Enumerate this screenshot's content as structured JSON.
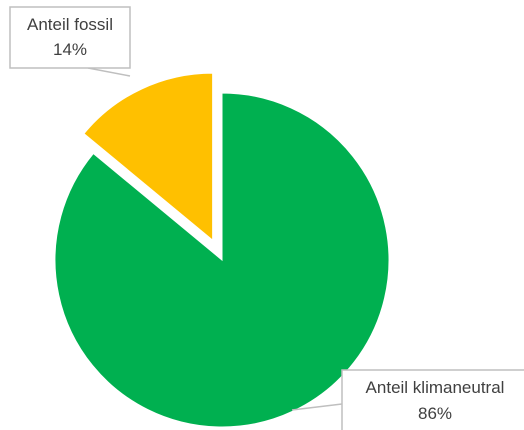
{
  "chart_data": {
    "type": "pie",
    "title": "",
    "slices": [
      {
        "label": "Anteil fossil",
        "value": 14,
        "value_label": "14%",
        "color": "#ffc000",
        "exploded": true
      },
      {
        "label": "Anteil klimaneutral",
        "value": 86,
        "value_label": "86%",
        "color": "#00b050",
        "exploded": false
      }
    ],
    "start_angle_deg": 0,
    "direction": "counterclockwise",
    "legend": "none",
    "data_labels": "callouts"
  }
}
